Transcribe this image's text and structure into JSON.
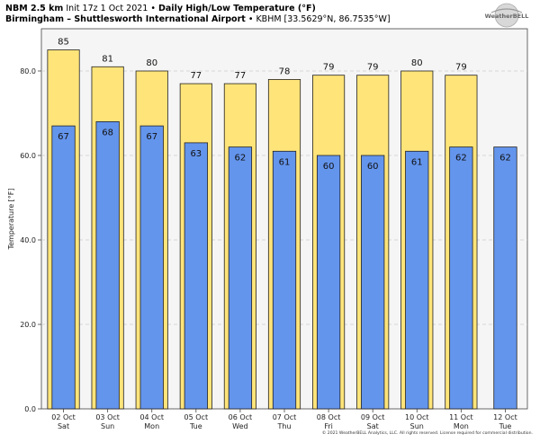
{
  "header": {
    "model": "NBM 2.5 km",
    "init": "Init 17z 1 Oct 2021",
    "bullet": "•",
    "title": "Daily High/Low Temperature (°F)",
    "station_name": "Birmingham – Shuttlesworth International Airport",
    "station_info": "• KBHM [33.5629°N, 86.7535°W]"
  },
  "logo": {
    "text": "WeatherBELL"
  },
  "footer": {
    "text": "© 2021 WeatherBELL Analytics, LLC. All rights reserved. License required for commercial distribution."
  },
  "colors": {
    "high": "#ffe47a",
    "low": "#6495ed",
    "plot_bg": "#f5f5f5",
    "grid": "#cccccc"
  },
  "chart_data": {
    "type": "bar",
    "ylabel": "Temperature [°F]",
    "ylim": [
      0,
      90
    ],
    "yticks": [
      "0.0",
      "20.0",
      "40.0",
      "60.0",
      "80.0"
    ],
    "ytick_values": [
      0,
      20,
      40,
      60,
      80
    ],
    "grid": true,
    "categories": [
      {
        "date": "02 Oct",
        "day": "Sat"
      },
      {
        "date": "03 Oct",
        "day": "Sun"
      },
      {
        "date": "04 Oct",
        "day": "Mon"
      },
      {
        "date": "05 Oct",
        "day": "Tue"
      },
      {
        "date": "06 Oct",
        "day": "Wed"
      },
      {
        "date": "07 Oct",
        "day": "Thu"
      },
      {
        "date": "08 Oct",
        "day": "Fri"
      },
      {
        "date": "09 Oct",
        "day": "Sat"
      },
      {
        "date": "10 Oct",
        "day": "Sun"
      },
      {
        "date": "11 Oct",
        "day": "Mon"
      },
      {
        "date": "12 Oct",
        "day": "Tue"
      }
    ],
    "series": [
      {
        "values": [
          85,
          81,
          80,
          77,
          77,
          78,
          79,
          79,
          80,
          79,
          null
        ]
      },
      {
        "values": [
          67,
          68,
          67,
          63,
          62,
          61,
          60,
          60,
          61,
          62,
          62
        ]
      }
    ]
  }
}
